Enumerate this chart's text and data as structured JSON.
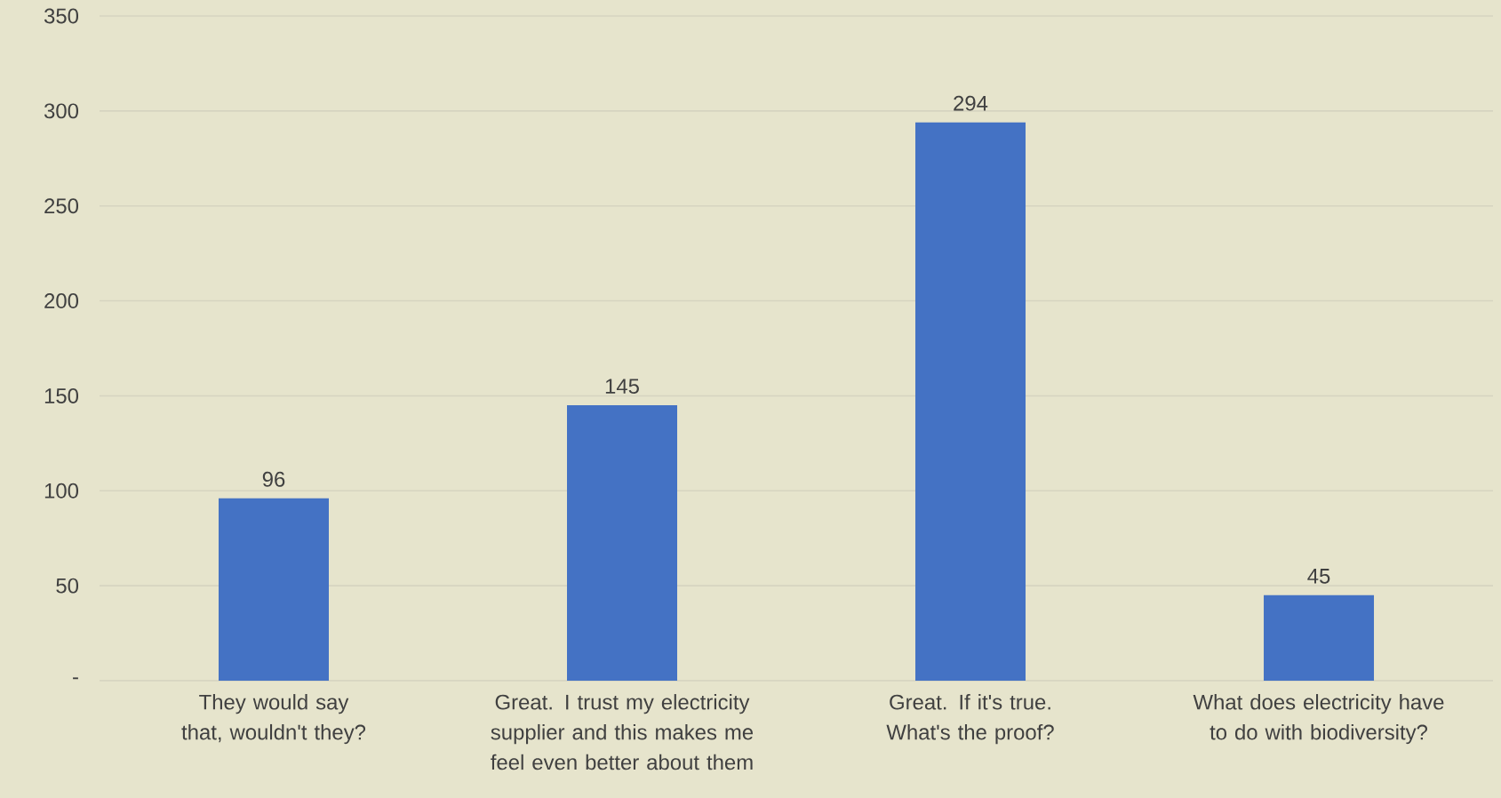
{
  "chart_data": {
    "type": "bar",
    "categories": [
      "They would say that, wouldn't they?",
      "Great. I trust my electricity supplier and this makes me feel even better about them",
      "Great. If it's true. What's the proof?",
      "What does electricity have to do with biodiversity?"
    ],
    "values": [
      96,
      145,
      294,
      45
    ],
    "color": "#4472c4",
    "ylim": [
      0,
      350
    ],
    "yticks": [
      {
        "value": 0,
        "label": "-"
      },
      50,
      100,
      150,
      200,
      250,
      300,
      350
    ],
    "grid": "y",
    "data_labels": true
  }
}
